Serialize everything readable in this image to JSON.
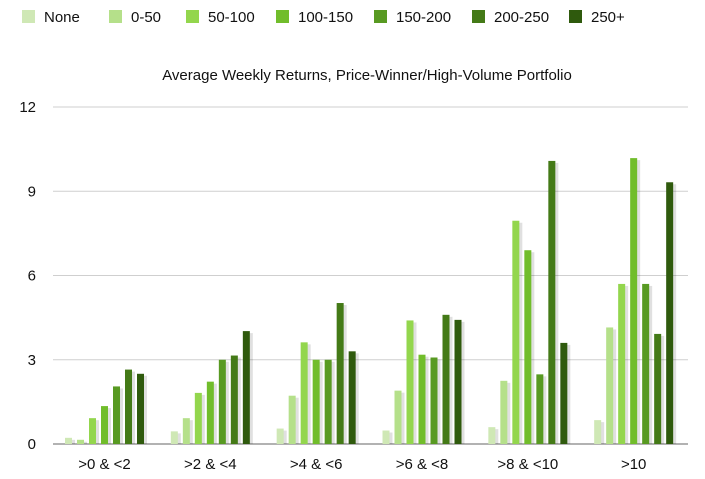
{
  "chart_data": {
    "type": "bar",
    "title": "Average Weekly Returns, Price-Winner/High-Volume Portfolio",
    "xlabel": "",
    "ylabel": "",
    "categories": [
      ">0 & <2",
      ">2 & <4",
      ">4 & <6",
      ">6 & <8",
      ">8 & <10",
      ">10"
    ],
    "ylim": [
      0,
      12
    ],
    "yticks": [
      0,
      3,
      6,
      9,
      12
    ],
    "grid": "horizontal",
    "legend_position": "top",
    "series": [
      {
        "name": "None",
        "color": "#cfe8b5",
        "values": [
          0.22,
          0.45,
          0.55,
          0.48,
          0.6,
          0.85
        ]
      },
      {
        "name": "0-50",
        "color": "#b5e08a",
        "values": [
          0.15,
          0.92,
          1.72,
          1.9,
          2.25,
          4.15
        ]
      },
      {
        "name": "50-100",
        "color": "#93d64d",
        "values": [
          0.92,
          1.82,
          3.62,
          4.4,
          7.95,
          5.7
        ]
      },
      {
        "name": "100-150",
        "color": "#71bd2b",
        "values": [
          1.35,
          2.22,
          3.0,
          3.18,
          6.9,
          10.18
        ]
      },
      {
        "name": "150-200",
        "color": "#589a22",
        "values": [
          2.05,
          3.0,
          3.0,
          3.08,
          2.48,
          5.7
        ]
      },
      {
        "name": "200-250",
        "color": "#447a17",
        "values": [
          2.65,
          3.15,
          5.02,
          4.6,
          10.08,
          3.92
        ]
      },
      {
        "name": "250+",
        "color": "#2f5a0d",
        "values": [
          2.5,
          4.02,
          3.3,
          4.42,
          3.6,
          9.32
        ]
      }
    ]
  }
}
